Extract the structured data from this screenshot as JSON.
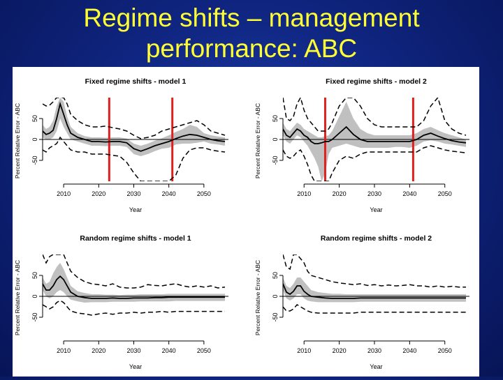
{
  "slide": {
    "title_line1": "Regime shifts – management",
    "title_line2": "performance: ABC"
  },
  "colors": {
    "background": "#0f2580",
    "title": "#ffff33",
    "band": "#c0c0c0",
    "median": "#000000",
    "interval": "#000000",
    "regime_line": "#e0201c"
  },
  "chart_data": [
    {
      "type": "line",
      "title": "Fixed regime shifts - model 1",
      "xlabel": "Year",
      "ylabel": "Percent Relative Error - ABC",
      "xlim": [
        2004,
        2057
      ],
      "ylim": [
        -100,
        100
      ],
      "xticks": [
        2010,
        2020,
        2030,
        2040,
        2050
      ],
      "yticks": [
        -50,
        0,
        50
      ],
      "regime_lines": [
        2023,
        2041
      ],
      "x": [
        2004,
        2005,
        2006,
        2007,
        2008,
        2009,
        2010,
        2011,
        2012,
        2014,
        2016,
        2018,
        2020,
        2022,
        2024,
        2026,
        2028,
        2030,
        2032,
        2034,
        2036,
        2038,
        2040,
        2042,
        2044,
        2046,
        2048,
        2050,
        2052,
        2054,
        2056
      ],
      "series": [
        {
          "role": "median",
          "values": [
            20,
            12,
            15,
            22,
            50,
            85,
            60,
            35,
            15,
            5,
            0,
            -5,
            -5,
            -6,
            -5,
            -5,
            -8,
            -22,
            -28,
            -22,
            -15,
            -10,
            -5,
            2,
            8,
            12,
            10,
            5,
            0,
            -3,
            -5
          ]
        },
        {
          "role": "band_upper",
          "values": [
            35,
            25,
            30,
            45,
            80,
            100,
            90,
            55,
            30,
            15,
            8,
            5,
            5,
            4,
            5,
            5,
            2,
            -10,
            -15,
            -10,
            -3,
            3,
            10,
            18,
            25,
            35,
            30,
            15,
            10,
            7,
            5
          ]
        },
        {
          "role": "band_lower",
          "values": [
            5,
            0,
            0,
            5,
            20,
            50,
            30,
            15,
            0,
            -5,
            -10,
            -15,
            -15,
            -16,
            -15,
            -15,
            -18,
            -35,
            -40,
            -35,
            -28,
            -22,
            -20,
            -12,
            -10,
            -10,
            -8,
            -5,
            -10,
            -12,
            -15
          ]
        },
        {
          "role": "interval_upper",
          "values": [
            85,
            80,
            82,
            90,
            100,
            100,
            100,
            85,
            60,
            45,
            35,
            30,
            30,
            32,
            28,
            25,
            20,
            10,
            2,
            5,
            10,
            20,
            25,
            30,
            35,
            40,
            45,
            35,
            20,
            15,
            10
          ]
        },
        {
          "role": "interval_lower",
          "values": [
            -25,
            -30,
            -20,
            -15,
            -10,
            5,
            -5,
            -15,
            -25,
            -30,
            -30,
            -35,
            -35,
            -35,
            -38,
            -40,
            -55,
            -80,
            -100,
            -100,
            -100,
            -100,
            -100,
            -85,
            -45,
            -25,
            -20,
            -20,
            -25,
            -28,
            -30
          ]
        }
      ]
    },
    {
      "type": "line",
      "title": "Fixed regime shifts - model 2",
      "xlabel": "Year",
      "ylabel": "Percent Relative Error - ABC",
      "xlim": [
        2004,
        2057
      ],
      "ylim": [
        -100,
        100
      ],
      "xticks": [
        2010,
        2020,
        2030,
        2040,
        2050
      ],
      "yticks": [
        -50,
        0,
        50
      ],
      "regime_lines": [
        2016,
        2041
      ],
      "x": [
        2004,
        2005,
        2006,
        2007,
        2008,
        2009,
        2010,
        2011,
        2012,
        2013,
        2014,
        2015,
        2016,
        2017,
        2018,
        2020,
        2022,
        2024,
        2026,
        2028,
        2030,
        2032,
        2034,
        2036,
        2038,
        2040,
        2042,
        2044,
        2046,
        2048,
        2050,
        2052,
        2054,
        2056
      ],
      "series": [
        {
          "role": "median",
          "values": [
            25,
            10,
            5,
            15,
            25,
            20,
            10,
            5,
            -5,
            -10,
            -10,
            -8,
            -5,
            -5,
            0,
            15,
            30,
            12,
            0,
            -5,
            -5,
            -5,
            -5,
            -5,
            -5,
            -5,
            0,
            10,
            15,
            8,
            2,
            -3,
            -6,
            -8
          ]
        },
        {
          "role": "band_upper",
          "values": [
            40,
            25,
            20,
            30,
            40,
            35,
            25,
            20,
            15,
            10,
            5,
            5,
            8,
            10,
            20,
            55,
            90,
            50,
            25,
            15,
            10,
            10,
            10,
            10,
            10,
            10,
            15,
            25,
            30,
            22,
            15,
            10,
            5,
            0
          ]
        },
        {
          "role": "band_lower",
          "values": [
            10,
            -5,
            -10,
            0,
            10,
            5,
            -5,
            -15,
            -30,
            -45,
            -65,
            -100,
            -80,
            -35,
            -20,
            -15,
            -10,
            -15,
            -20,
            -20,
            -20,
            -20,
            -20,
            -18,
            -18,
            -20,
            -15,
            -5,
            -2,
            -5,
            -10,
            -12,
            -15,
            -18
          ]
        },
        {
          "role": "interval_upper",
          "values": [
            100,
            50,
            45,
            55,
            85,
            100,
            70,
            50,
            40,
            30,
            20,
            20,
            20,
            25,
            40,
            80,
            100,
            100,
            80,
            50,
            35,
            30,
            30,
            30,
            30,
            30,
            30,
            45,
            80,
            100,
            45,
            25,
            15,
            10
          ]
        },
        {
          "role": "interval_lower",
          "values": [
            -25,
            -40,
            -45,
            -40,
            -30,
            -25,
            -40,
            -60,
            -85,
            -100,
            -100,
            -100,
            -100,
            -100,
            -80,
            -50,
            -40,
            -45,
            -35,
            -30,
            -30,
            -30,
            -30,
            -30,
            -30,
            -30,
            -30,
            -20,
            -15,
            -20,
            -25,
            -28,
            -30,
            -32
          ]
        }
      ]
    },
    {
      "type": "line",
      "title": "Random regime shifts - model 1",
      "xlabel": "Year",
      "ylabel": "Percent Relative Error - ABC",
      "xlim": [
        2004,
        2057
      ],
      "ylim": [
        -100,
        100
      ],
      "xticks": [
        2010,
        2020,
        2030,
        2040,
        2050
      ],
      "yticks": [
        -50,
        0,
        50
      ],
      "regime_lines": [],
      "x": [
        2004,
        2005,
        2006,
        2007,
        2008,
        2009,
        2010,
        2011,
        2012,
        2014,
        2016,
        2018,
        2020,
        2022,
        2024,
        2026,
        2028,
        2030,
        2032,
        2034,
        2036,
        2038,
        2040,
        2042,
        2044,
        2046,
        2048,
        2050,
        2052,
        2054,
        2056
      ],
      "series": [
        {
          "role": "median",
          "values": [
            30,
            15,
            15,
            25,
            40,
            48,
            40,
            25,
            10,
            0,
            -3,
            -5,
            -5,
            -5,
            -4,
            -5,
            -5,
            -4,
            -4,
            -4,
            -3,
            -3,
            -2,
            -2,
            -2,
            -2,
            -2,
            -2,
            -2,
            -2,
            -2
          ]
        },
        {
          "role": "band_upper",
          "values": [
            45,
            30,
            35,
            55,
            70,
            80,
            65,
            45,
            25,
            12,
            8,
            5,
            5,
            4,
            4,
            3,
            4,
            4,
            5,
            5,
            5,
            5,
            6,
            6,
            6,
            6,
            6,
            6,
            6,
            6,
            6
          ]
        },
        {
          "role": "band_lower",
          "values": [
            15,
            0,
            -5,
            0,
            10,
            15,
            10,
            0,
            -8,
            -12,
            -15,
            -14,
            -14,
            -14,
            -13,
            -13,
            -13,
            -13,
            -12,
            -12,
            -12,
            -12,
            -12,
            -11,
            -11,
            -11,
            -11,
            -11,
            -11,
            -11,
            -11
          ]
        },
        {
          "role": "interval_upper",
          "values": [
            100,
            80,
            95,
            100,
            100,
            100,
            100,
            80,
            60,
            45,
            35,
            30,
            28,
            25,
            30,
            22,
            20,
            20,
            22,
            28,
            26,
            25,
            28,
            30,
            25,
            22,
            25,
            22,
            25,
            20,
            22
          ]
        },
        {
          "role": "interval_lower",
          "values": [
            -20,
            -25,
            -30,
            -25,
            -15,
            -10,
            -15,
            -25,
            -35,
            -40,
            -42,
            -45,
            -42,
            -40,
            -43,
            -40,
            -40,
            -38,
            -40,
            -38,
            -38,
            -36,
            -38,
            -36,
            -36,
            -36,
            -36,
            -36,
            -36,
            -36,
            -36
          ]
        }
      ]
    },
    {
      "type": "line",
      "title": "Random regime shifts - model 2",
      "xlabel": "Year",
      "ylabel": "Percent Relative Error - ABC",
      "xlim": [
        2004,
        2057
      ],
      "ylim": [
        -100,
        100
      ],
      "xticks": [
        2010,
        2020,
        2030,
        2040,
        2050
      ],
      "yticks": [
        -50,
        0,
        50
      ],
      "regime_lines": [],
      "x": [
        2004,
        2005,
        2006,
        2007,
        2008,
        2009,
        2010,
        2011,
        2012,
        2014,
        2016,
        2018,
        2020,
        2022,
        2024,
        2026,
        2028,
        2030,
        2032,
        2034,
        2036,
        2038,
        2040,
        2042,
        2044,
        2046,
        2048,
        2050,
        2052,
        2054,
        2056
      ],
      "series": [
        {
          "role": "median",
          "values": [
            30,
            10,
            5,
            12,
            25,
            25,
            12,
            5,
            0,
            -2,
            -4,
            -5,
            -5,
            -5,
            -5,
            -4,
            -4,
            -4,
            -4,
            -4,
            -4,
            -4,
            -4,
            -4,
            -4,
            -4,
            -4,
            -4,
            -4,
            -4,
            -4
          ]
        },
        {
          "role": "band_upper",
          "values": [
            45,
            25,
            20,
            30,
            45,
            45,
            35,
            25,
            15,
            10,
            8,
            6,
            6,
            5,
            5,
            5,
            5,
            5,
            5,
            5,
            5,
            5,
            5,
            5,
            5,
            5,
            5,
            5,
            5,
            5,
            5
          ]
        },
        {
          "role": "band_lower",
          "values": [
            15,
            -5,
            -10,
            -5,
            5,
            5,
            -5,
            -10,
            -12,
            -14,
            -14,
            -14,
            -14,
            -14,
            -14,
            -13,
            -13,
            -13,
            -13,
            -13,
            -13,
            -13,
            -13,
            -13,
            -13,
            -13,
            -13,
            -13,
            -13,
            -13,
            -13
          ]
        },
        {
          "role": "interval_upper",
          "values": [
            100,
            70,
            65,
            100,
            100,
            90,
            80,
            60,
            50,
            45,
            40,
            35,
            32,
            30,
            28,
            30,
            26,
            28,
            25,
            27,
            25,
            26,
            28,
            25,
            25,
            22,
            25,
            22,
            24,
            22,
            22
          ]
        },
        {
          "role": "interval_lower",
          "values": [
            -25,
            -35,
            -35,
            -30,
            -20,
            -25,
            -30,
            -35,
            -38,
            -40,
            -40,
            -40,
            -40,
            -40,
            -40,
            -38,
            -38,
            -38,
            -38,
            -38,
            -38,
            -38,
            -38,
            -38,
            -38,
            -38,
            -38,
            -38,
            -38,
            -38,
            -38
          ]
        }
      ]
    }
  ]
}
